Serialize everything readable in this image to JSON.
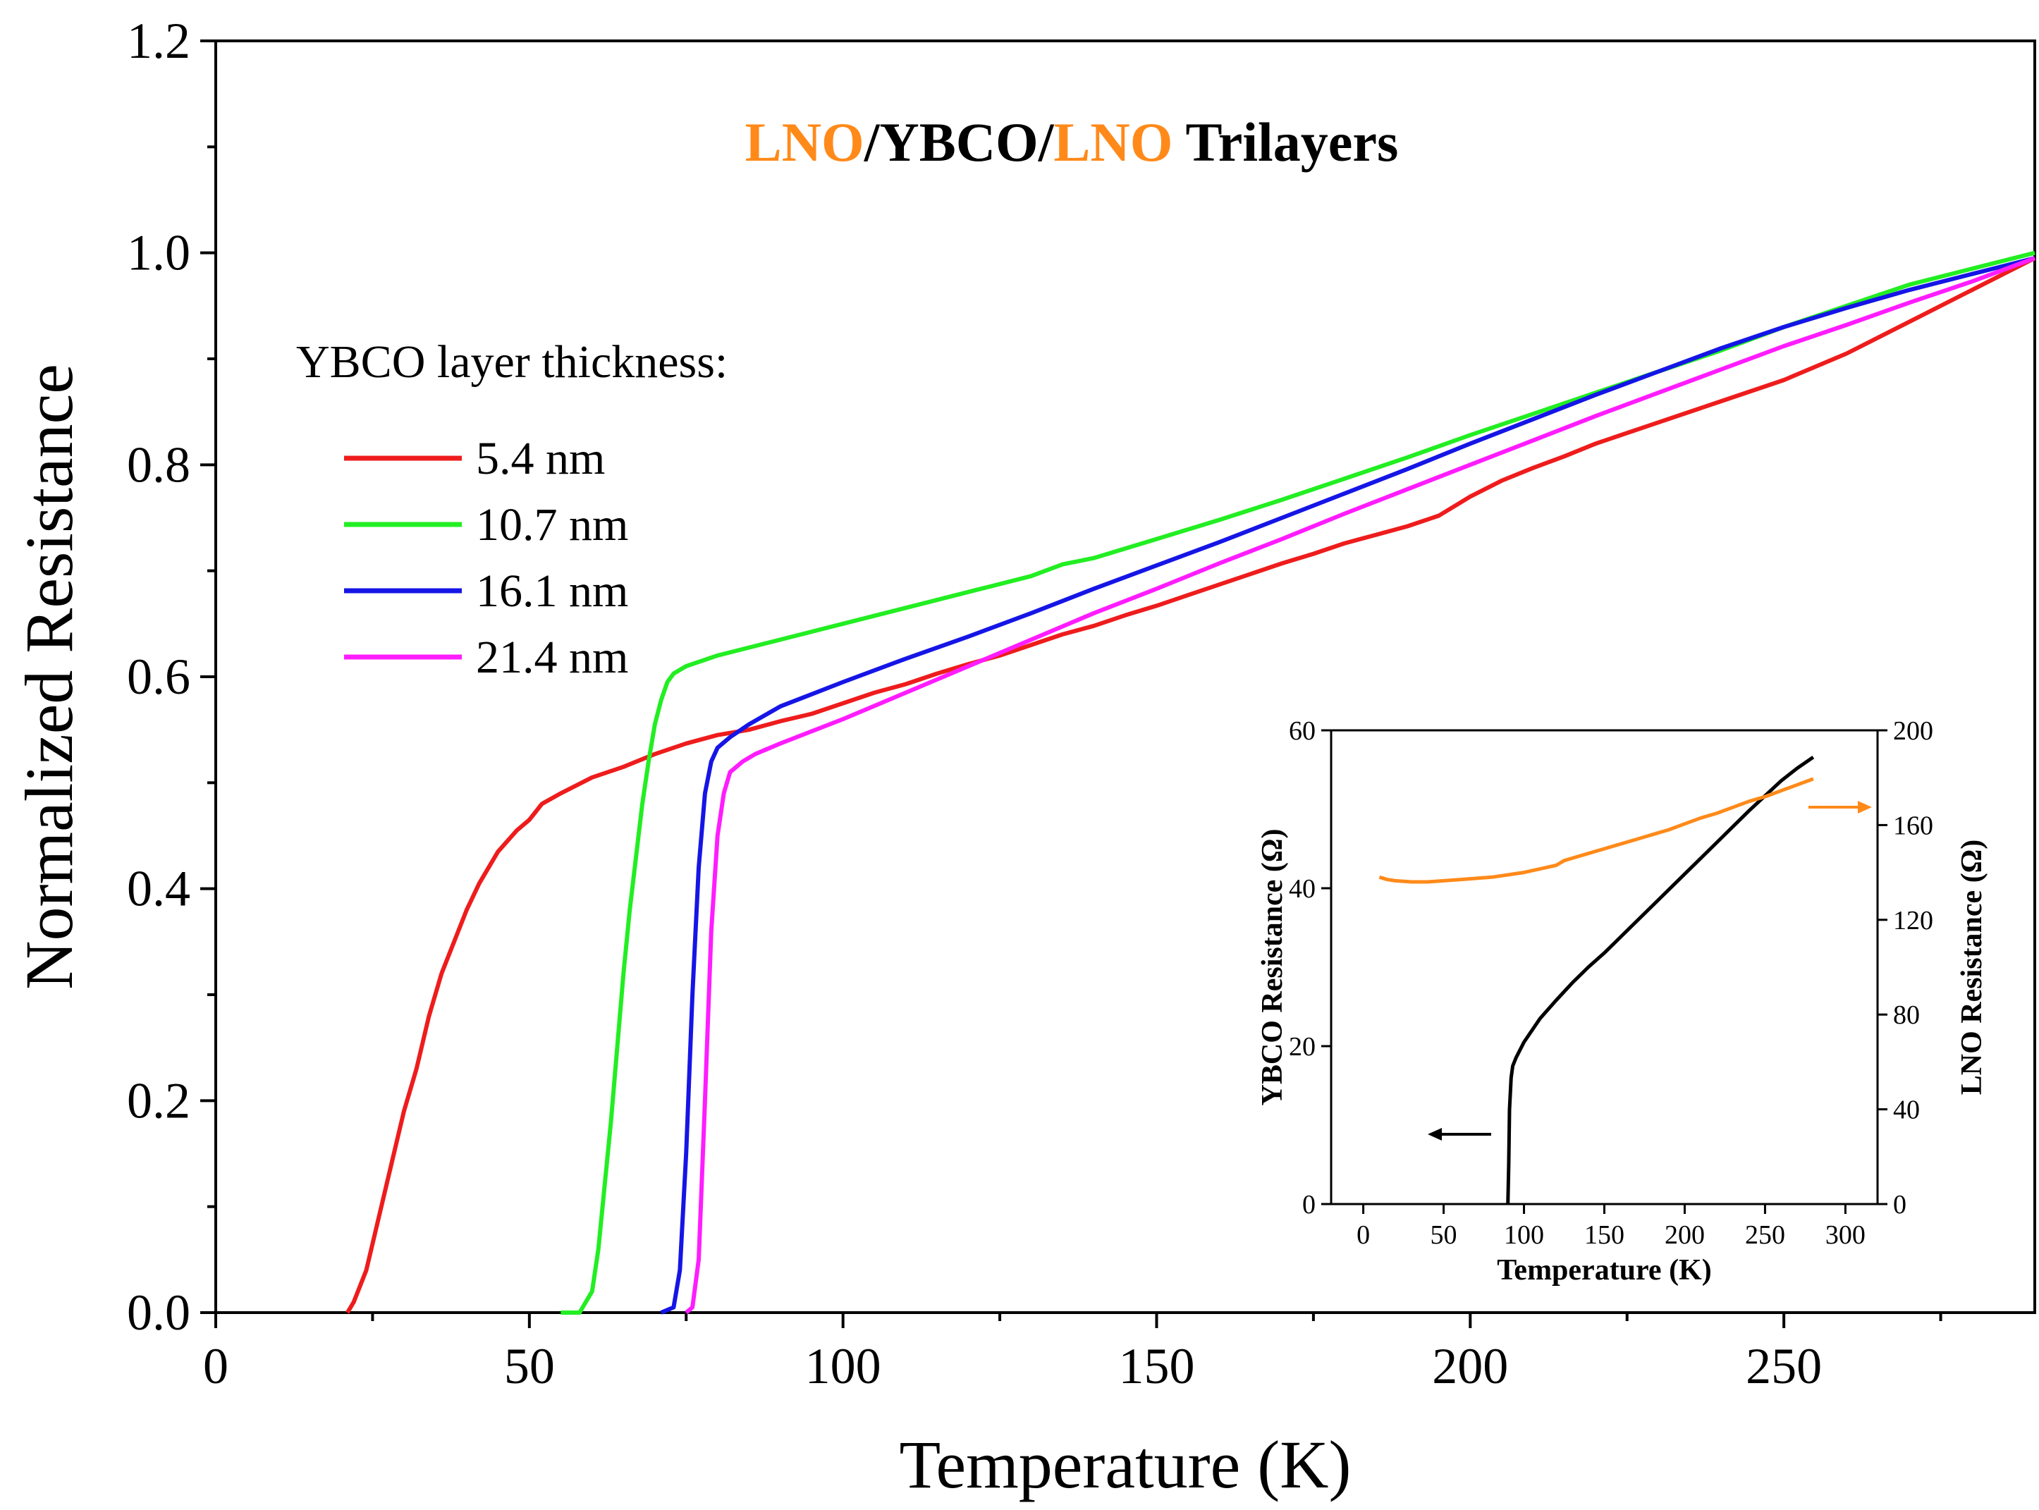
{
  "colors": {
    "red": "#ee1c1c",
    "green": "#22ee22",
    "blue": "#1515e6",
    "magenta": "#ff1cff",
    "orange": "#ff8a1a",
    "black": "#000000"
  },
  "chart_data": [
    {
      "id": "main",
      "type": "line",
      "title_parts": [
        {
          "text": "LNO",
          "color": "orange"
        },
        {
          "text": "/YBCO/",
          "color": "black"
        },
        {
          "text": "LNO",
          "color": "orange"
        },
        {
          "text": " Trilayers",
          "color": "black"
        }
      ],
      "xlabel": "Temperature (K)",
      "ylabel": "Normalized Resistance",
      "xlim": [
        0,
        290
      ],
      "ylim": [
        0,
        1.2
      ],
      "x_ticks": [
        0,
        50,
        100,
        150,
        200,
        250
      ],
      "x_minor_ticks": [
        25,
        75,
        125,
        175,
        225,
        275
      ],
      "y_ticks": [
        0.0,
        0.2,
        0.4,
        0.6,
        0.8,
        1.0,
        1.2
      ],
      "y_tick_labels": [
        "0.0",
        "0.2",
        "0.4",
        "0.6",
        "0.8",
        "1.0",
        "1.2"
      ],
      "y_minor_ticks": [
        0.1,
        0.3,
        0.5,
        0.7,
        0.9,
        1.1
      ],
      "grid": false,
      "legend_title": "YBCO layer thickness:",
      "legend_position": "upper-left",
      "series": [
        {
          "name": "5.4 nm",
          "color": "red",
          "points": [
            [
              21,
              0
            ],
            [
              22,
              0.01
            ],
            [
              24,
              0.04
            ],
            [
              26,
              0.09
            ],
            [
              28,
              0.14
            ],
            [
              30,
              0.19
            ],
            [
              32,
              0.23
            ],
            [
              34,
              0.28
            ],
            [
              36,
              0.32
            ],
            [
              38,
              0.35
            ],
            [
              40,
              0.38
            ],
            [
              42,
              0.405
            ],
            [
              45,
              0.435
            ],
            [
              48,
              0.455
            ],
            [
              50,
              0.465
            ],
            [
              52,
              0.48
            ],
            [
              55,
              0.49
            ],
            [
              60,
              0.505
            ],
            [
              65,
              0.515
            ],
            [
              70,
              0.527
            ],
            [
              75,
              0.537
            ],
            [
              80,
              0.545
            ],
            [
              85,
              0.55
            ],
            [
              90,
              0.558
            ],
            [
              95,
              0.565
            ],
            [
              100,
              0.575
            ],
            [
              105,
              0.585
            ],
            [
              110,
              0.593
            ],
            [
              115,
              0.603
            ],
            [
              120,
              0.612
            ],
            [
              125,
              0.62
            ],
            [
              130,
              0.63
            ],
            [
              135,
              0.64
            ],
            [
              140,
              0.648
            ],
            [
              145,
              0.658
            ],
            [
              150,
              0.667
            ],
            [
              155,
              0.677
            ],
            [
              160,
              0.687
            ],
            [
              165,
              0.697
            ],
            [
              170,
              0.707
            ],
            [
              175,
              0.716
            ],
            [
              180,
              0.726
            ],
            [
              185,
              0.734
            ],
            [
              190,
              0.742
            ],
            [
              195,
              0.752
            ],
            [
              200,
              0.77
            ],
            [
              205,
              0.785
            ],
            [
              210,
              0.797
            ],
            [
              215,
              0.808
            ],
            [
              220,
              0.82
            ],
            [
              230,
              0.84
            ],
            [
              240,
              0.86
            ],
            [
              250,
              0.88
            ],
            [
              260,
              0.905
            ],
            [
              270,
              0.935
            ],
            [
              280,
              0.965
            ],
            [
              290,
              0.995
            ]
          ]
        },
        {
          "name": "10.7 nm",
          "color": "green",
          "points": [
            [
              55,
              0
            ],
            [
              58,
              0
            ],
            [
              60,
              0.02
            ],
            [
              61,
              0.06
            ],
            [
              62,
              0.12
            ],
            [
              63,
              0.18
            ],
            [
              64,
              0.25
            ],
            [
              65,
              0.32
            ],
            [
              66,
              0.38
            ],
            [
              67,
              0.43
            ],
            [
              68,
              0.48
            ],
            [
              69,
              0.52
            ],
            [
              70,
              0.555
            ],
            [
              71,
              0.578
            ],
            [
              72,
              0.595
            ],
            [
              73,
              0.603
            ],
            [
              75,
              0.61
            ],
            [
              80,
              0.62
            ],
            [
              90,
              0.635
            ],
            [
              100,
              0.65
            ],
            [
              110,
              0.665
            ],
            [
              120,
              0.68
            ],
            [
              130,
              0.695
            ],
            [
              135,
              0.706
            ],
            [
              140,
              0.712
            ],
            [
              150,
              0.73
            ],
            [
              160,
              0.748
            ],
            [
              170,
              0.767
            ],
            [
              180,
              0.787
            ],
            [
              190,
              0.807
            ],
            [
              200,
              0.828
            ],
            [
              210,
              0.848
            ],
            [
              220,
              0.868
            ],
            [
              230,
              0.888
            ],
            [
              240,
              0.908
            ],
            [
              250,
              0.93
            ],
            [
              260,
              0.95
            ],
            [
              270,
              0.97
            ],
            [
              280,
              0.985
            ],
            [
              290,
              1.0
            ]
          ]
        },
        {
          "name": "16.1 nm",
          "color": "blue",
          "points": [
            [
              71,
              0
            ],
            [
              73,
              0.005
            ],
            [
              74,
              0.04
            ],
            [
              75,
              0.15
            ],
            [
              76,
              0.3
            ],
            [
              77,
              0.42
            ],
            [
              78,
              0.49
            ],
            [
              79,
              0.52
            ],
            [
              80,
              0.533
            ],
            [
              82,
              0.543
            ],
            [
              85,
              0.555
            ],
            [
              90,
              0.572
            ],
            [
              100,
              0.595
            ],
            [
              110,
              0.617
            ],
            [
              120,
              0.638
            ],
            [
              130,
              0.66
            ],
            [
              140,
              0.683
            ],
            [
              150,
              0.705
            ],
            [
              160,
              0.727
            ],
            [
              170,
              0.75
            ],
            [
              180,
              0.773
            ],
            [
              190,
              0.796
            ],
            [
              200,
              0.82
            ],
            [
              210,
              0.843
            ],
            [
              220,
              0.866
            ],
            [
              230,
              0.888
            ],
            [
              240,
              0.91
            ],
            [
              250,
              0.93
            ],
            [
              260,
              0.948
            ],
            [
              270,
              0.965
            ],
            [
              280,
              0.98
            ],
            [
              290,
              0.995
            ]
          ]
        },
        {
          "name": "21.4 nm",
          "color": "magenta",
          "points": [
            [
              75,
              0
            ],
            [
              76,
              0.005
            ],
            [
              77,
              0.05
            ],
            [
              78,
              0.2
            ],
            [
              79,
              0.36
            ],
            [
              80,
              0.45
            ],
            [
              81,
              0.49
            ],
            [
              82,
              0.51
            ],
            [
              84,
              0.52
            ],
            [
              86,
              0.527
            ],
            [
              90,
              0.537
            ],
            [
              100,
              0.56
            ],
            [
              110,
              0.585
            ],
            [
              120,
              0.61
            ],
            [
              130,
              0.635
            ],
            [
              140,
              0.66
            ],
            [
              150,
              0.683
            ],
            [
              160,
              0.707
            ],
            [
              170,
              0.73
            ],
            [
              180,
              0.754
            ],
            [
              190,
              0.777
            ],
            [
              200,
              0.8
            ],
            [
              210,
              0.823
            ],
            [
              220,
              0.846
            ],
            [
              230,
              0.868
            ],
            [
              240,
              0.89
            ],
            [
              250,
              0.912
            ],
            [
              260,
              0.932
            ],
            [
              270,
              0.953
            ],
            [
              280,
              0.973
            ],
            [
              290,
              0.995
            ]
          ]
        }
      ]
    },
    {
      "id": "inset",
      "type": "line",
      "xlabel": "Temperature (K)",
      "ylabel_left": "YBCO Resistance (Ω)",
      "ylabel_right": "LNO Resistance (Ω)",
      "xlim": [
        -20,
        320
      ],
      "ylim_left": [
        0,
        60
      ],
      "ylim_right": [
        0,
        200
      ],
      "x_ticks": [
        0,
        50,
        100,
        150,
        200,
        250,
        300
      ],
      "y_left_ticks": [
        0,
        20,
        40,
        60
      ],
      "y_right_ticks": [
        0,
        40,
        80,
        120,
        160,
        200
      ],
      "series": [
        {
          "name": "YBCO",
          "axis": "left",
          "color": "black",
          "points": [
            [
              90,
              0
            ],
            [
              90.5,
              5
            ],
            [
              91,
              12
            ],
            [
              92,
              16
            ],
            [
              93,
              17.5
            ],
            [
              95,
              18.5
            ],
            [
              100,
              20.5
            ],
            [
              110,
              23.5
            ],
            [
              120,
              25.8
            ],
            [
              130,
              28
            ],
            [
              140,
              30
            ],
            [
              150,
              31.8
            ],
            [
              160,
              33.8
            ],
            [
              180,
              37.8
            ],
            [
              200,
              41.8
            ],
            [
              220,
              45.8
            ],
            [
              240,
              49.8
            ],
            [
              260,
              53.6
            ],
            [
              270,
              55.2
            ],
            [
              280,
              56.6
            ]
          ]
        },
        {
          "name": "LNO",
          "axis": "right",
          "color": "orange",
          "points": [
            [
              10,
              138
            ],
            [
              15,
              137
            ],
            [
              20,
              136.5
            ],
            [
              30,
              136
            ],
            [
              40,
              136
            ],
            [
              50,
              136.5
            ],
            [
              60,
              137
            ],
            [
              70,
              137.5
            ],
            [
              80,
              138
            ],
            [
              90,
              139
            ],
            [
              100,
              140
            ],
            [
              110,
              141.5
            ],
            [
              120,
              143
            ],
            [
              125,
              145
            ],
            [
              130,
              146
            ],
            [
              140,
              148
            ],
            [
              150,
              150
            ],
            [
              160,
              152
            ],
            [
              170,
              154
            ],
            [
              180,
              156
            ],
            [
              190,
              158
            ],
            [
              200,
              160.5
            ],
            [
              210,
              163
            ],
            [
              220,
              165
            ],
            [
              230,
              167.5
            ],
            [
              240,
              170
            ],
            [
              250,
              172
            ],
            [
              260,
              174.5
            ],
            [
              270,
              177
            ],
            [
              280,
              179.5
            ]
          ]
        }
      ],
      "arrows": [
        {
          "axis": "left",
          "direction": "left",
          "color": "black"
        },
        {
          "axis": "right",
          "direction": "right",
          "color": "orange"
        }
      ]
    }
  ]
}
